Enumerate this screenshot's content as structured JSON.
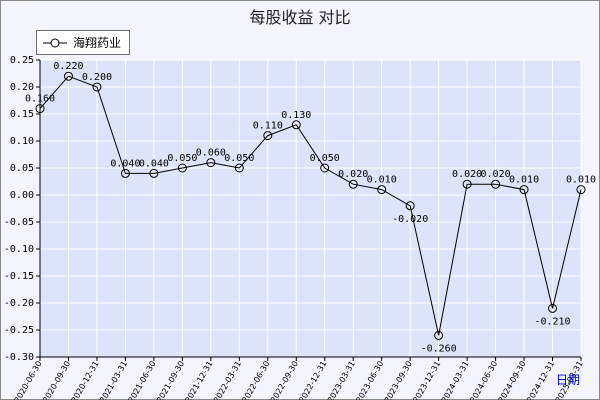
{
  "chart_data": {
    "type": "line",
    "title": "每股收益  对比",
    "xlabel": "日期",
    "ylabel": "",
    "ylim": [
      -0.3,
      0.25
    ],
    "yticks": [
      "0.25",
      "0.20",
      "0.15",
      "0.10",
      "0.05",
      "0.00",
      "-0.05",
      "-0.10",
      "-0.15",
      "-0.20",
      "-0.25",
      "-0.30"
    ],
    "grid": true,
    "legend_position": "top-left",
    "categories": [
      "2020-06-30",
      "2020-09-30",
      "2020-12-31",
      "2021-03-31",
      "2021-06-30",
      "2021-09-30",
      "2021-12-31",
      "2022-03-31",
      "2022-06-30",
      "2022-09-30",
      "2022-12-31",
      "2023-03-31",
      "2023-06-30",
      "2023-09-30",
      "2023-12-31",
      "2024-03-31",
      "2024-06-30",
      "2024-09-30",
      "2024-12-31",
      "2025-03-31"
    ],
    "series": [
      {
        "name": "海翔药业",
        "values": [
          0.16,
          0.22,
          0.2,
          0.04,
          0.04,
          0.05,
          0.06,
          0.05,
          0.11,
          0.13,
          0.05,
          0.02,
          0.01,
          -0.02,
          -0.26,
          0.02,
          0.02,
          0.01,
          -0.21,
          0.01
        ],
        "labels": [
          "0.160",
          "0.220",
          "0.200",
          "0.040",
          "0.040",
          "0.050",
          "0.060",
          "0.050",
          "0.110",
          "0.130",
          "0.050",
          "0.020",
          "0.010",
          "-0.020",
          "-0.260",
          "0.020",
          "0.020",
          "0.010",
          "-0.210",
          "0.010"
        ]
      }
    ],
    "colors": {
      "plot_bg": "#dde3f8",
      "grid": "#ffffff",
      "line": "#000000",
      "frame_bg": "#f4f4ff"
    }
  }
}
